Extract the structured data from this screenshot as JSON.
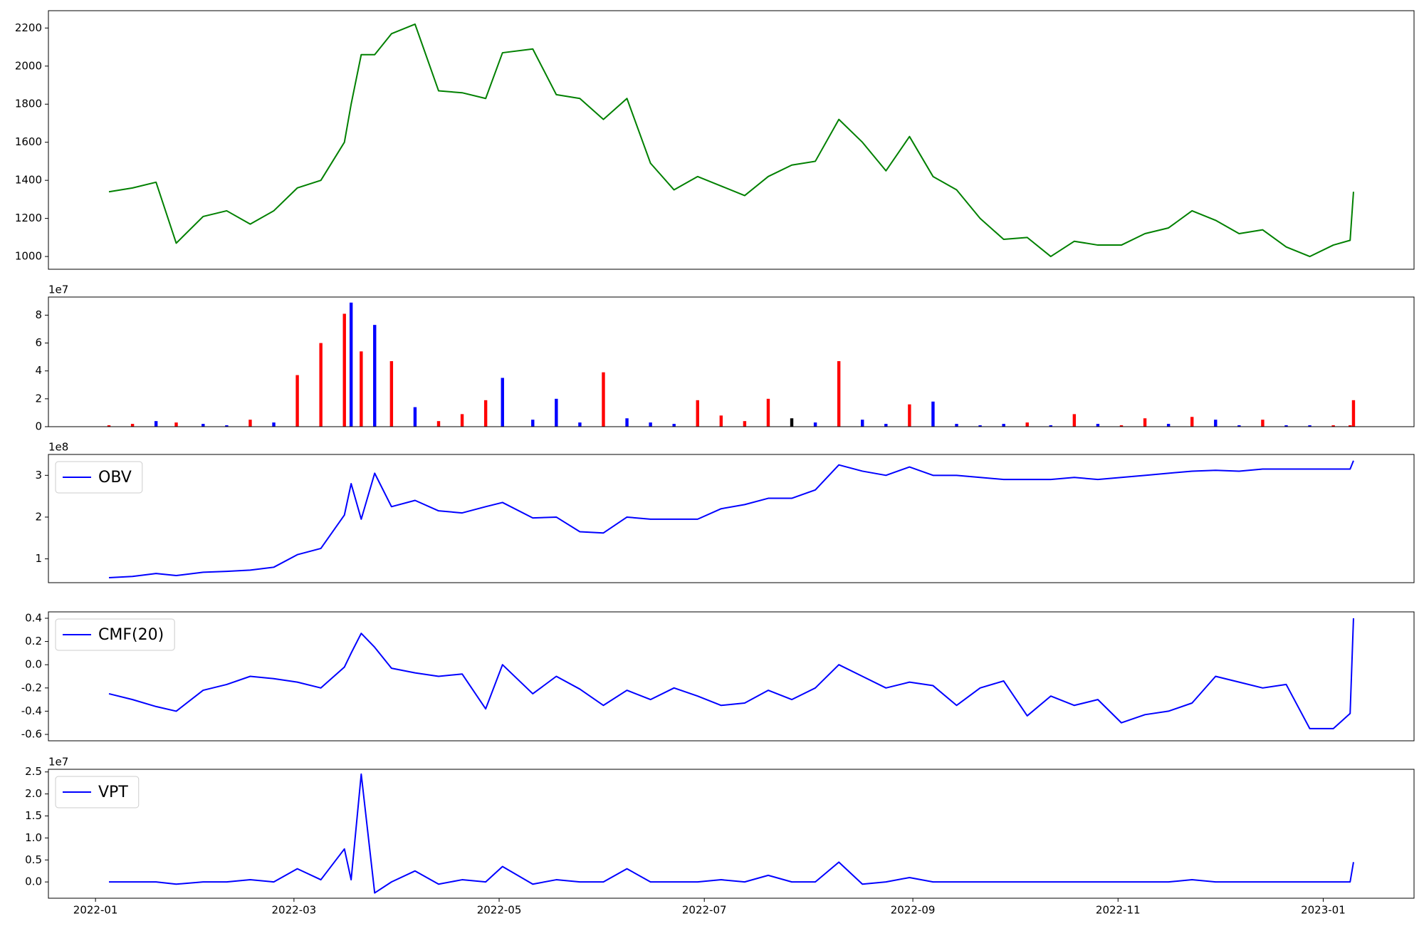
{
  "chart_data": [
    {
      "type": "line",
      "x": [
        "2022-01-05",
        "2022-01-12",
        "2022-01-19",
        "2022-01-25",
        "2022-02-02",
        "2022-02-09",
        "2022-02-16",
        "2022-02-23",
        "2022-03-02",
        "2022-03-09",
        "2022-03-16",
        "2022-03-18",
        "2022-03-21",
        "2022-03-25",
        "2022-03-30",
        "2022-04-06",
        "2022-04-13",
        "2022-04-20",
        "2022-04-27",
        "2022-05-02",
        "2022-05-11",
        "2022-05-18",
        "2022-05-25",
        "2022-06-01",
        "2022-06-08",
        "2022-06-15",
        "2022-06-22",
        "2022-06-29",
        "2022-07-06",
        "2022-07-13",
        "2022-07-20",
        "2022-07-27",
        "2022-08-03",
        "2022-08-10",
        "2022-08-17",
        "2022-08-24",
        "2022-08-31",
        "2022-09-07",
        "2022-09-14",
        "2022-09-21",
        "2022-09-28",
        "2022-10-05",
        "2022-10-12",
        "2022-10-19",
        "2022-10-26",
        "2022-11-02",
        "2022-11-09",
        "2022-11-16",
        "2022-11-23",
        "2022-11-30",
        "2022-12-07",
        "2022-12-14",
        "2022-12-21",
        "2022-12-28",
        "2023-01-04",
        "2023-01-09",
        "2023-01-10"
      ],
      "series": [
        {
          "color": "green",
          "values": [
            1340,
            1360,
            1390,
            1070,
            1210,
            1240,
            1170,
            1240,
            1360,
            1400,
            1600,
            1800,
            2060,
            2060,
            2170,
            2220,
            1870,
            1860,
            1830,
            2070,
            2090,
            1850,
            1830,
            1720,
            1830,
            1490,
            1350,
            1420,
            1370,
            1320,
            1420,
            1480,
            1500,
            1720,
            1600,
            1450,
            1630,
            1420,
            1350,
            1200,
            1090,
            1100,
            1000,
            1080,
            1060,
            1060,
            1120,
            1150,
            1240,
            1190,
            1120,
            1140,
            1050,
            1000,
            1060,
            1085,
            1340
          ]
        }
      ],
      "xlim": [
        "2021-12-18",
        "2023-01-28"
      ],
      "ylim": [
        933,
        2291
      ],
      "yticks": [
        1000,
        1200,
        1400,
        1600,
        1800,
        2000,
        2200
      ]
    },
    {
      "type": "bar",
      "offset_label": "1e7",
      "x": [
        "2022-01-05",
        "2022-01-12",
        "2022-01-19",
        "2022-01-25",
        "2022-02-02",
        "2022-02-09",
        "2022-02-16",
        "2022-02-23",
        "2022-03-02",
        "2022-03-09",
        "2022-03-16",
        "2022-03-18",
        "2022-03-21",
        "2022-03-25",
        "2022-03-30",
        "2022-04-06",
        "2022-04-13",
        "2022-04-20",
        "2022-04-27",
        "2022-05-02",
        "2022-05-11",
        "2022-05-18",
        "2022-05-25",
        "2022-06-01",
        "2022-06-08",
        "2022-06-15",
        "2022-06-22",
        "2022-06-29",
        "2022-07-06",
        "2022-07-13",
        "2022-07-20",
        "2022-07-27",
        "2022-08-03",
        "2022-08-10",
        "2022-08-17",
        "2022-08-24",
        "2022-08-31",
        "2022-09-07",
        "2022-09-14",
        "2022-09-21",
        "2022-09-28",
        "2022-10-05",
        "2022-10-12",
        "2022-10-19",
        "2022-10-26",
        "2022-11-02",
        "2022-11-09",
        "2022-11-16",
        "2022-11-23",
        "2022-11-30",
        "2022-12-07",
        "2022-12-14",
        "2022-12-21",
        "2022-12-28",
        "2023-01-04",
        "2023-01-09",
        "2023-01-10"
      ],
      "values": [
        0.1,
        0.2,
        0.4,
        0.3,
        0.2,
        0.1,
        0.5,
        0.3,
        3.7,
        6.0,
        8.1,
        8.9,
        5.4,
        7.3,
        4.7,
        1.4,
        0.4,
        0.9,
        1.9,
        3.5,
        0.5,
        2.0,
        0.3,
        3.9,
        0.6,
        0.3,
        0.2,
        1.9,
        0.8,
        0.4,
        2.0,
        0.6,
        0.3,
        4.7,
        0.5,
        0.2,
        1.6,
        1.8,
        0.2,
        0.1,
        0.2,
        0.3,
        0.1,
        0.9,
        0.2,
        0.1,
        0.6,
        0.2,
        0.7,
        0.5,
        0.1,
        0.5,
        0.1,
        0.1,
        0.1,
        0.1,
        1.9
      ],
      "colors": [
        "red",
        "red",
        "blue",
        "red",
        "blue",
        "blue",
        "red",
        "blue",
        "red",
        "red",
        "red",
        "blue",
        "red",
        "blue",
        "red",
        "blue",
        "red",
        "red",
        "red",
        "blue",
        "blue",
        "blue",
        "blue",
        "red",
        "blue",
        "blue",
        "blue",
        "red",
        "red",
        "red",
        "red",
        "black",
        "blue",
        "red",
        "blue",
        "blue",
        "red",
        "blue",
        "blue",
        "blue",
        "blue",
        "red",
        "blue",
        "red",
        "blue",
        "red",
        "red",
        "blue",
        "red",
        "blue",
        "blue",
        "red",
        "blue",
        "blue",
        "red",
        "red",
        "red"
      ],
      "xlim": [
        "2021-12-18",
        "2023-01-28"
      ],
      "ylim": [
        0,
        9.3
      ],
      "yticks": [
        0,
        2,
        4,
        6,
        8
      ]
    },
    {
      "type": "line",
      "offset_label": "1e8",
      "legend": "upper left",
      "x": [
        "2022-01-05",
        "2022-01-12",
        "2022-01-19",
        "2022-01-25",
        "2022-02-02",
        "2022-02-09",
        "2022-02-16",
        "2022-02-23",
        "2022-03-02",
        "2022-03-09",
        "2022-03-16",
        "2022-03-18",
        "2022-03-21",
        "2022-03-25",
        "2022-03-30",
        "2022-04-06",
        "2022-04-13",
        "2022-04-20",
        "2022-04-27",
        "2022-05-02",
        "2022-05-11",
        "2022-05-18",
        "2022-05-25",
        "2022-06-01",
        "2022-06-08",
        "2022-06-15",
        "2022-06-22",
        "2022-06-29",
        "2022-07-06",
        "2022-07-13",
        "2022-07-20",
        "2022-07-27",
        "2022-08-03",
        "2022-08-10",
        "2022-08-17",
        "2022-08-24",
        "2022-08-31",
        "2022-09-07",
        "2022-09-14",
        "2022-09-21",
        "2022-09-28",
        "2022-10-05",
        "2022-10-12",
        "2022-10-19",
        "2022-10-26",
        "2022-11-02",
        "2022-11-09",
        "2022-11-16",
        "2022-11-23",
        "2022-11-30",
        "2022-12-07",
        "2022-12-14",
        "2022-12-21",
        "2022-12-28",
        "2023-01-04",
        "2023-01-09",
        "2023-01-10"
      ],
      "series": [
        {
          "name": "OBV",
          "color": "blue",
          "values": [
            0.55,
            0.58,
            0.65,
            0.6,
            0.68,
            0.7,
            0.73,
            0.8,
            1.1,
            1.25,
            2.05,
            2.8,
            1.95,
            3.05,
            2.25,
            2.4,
            2.15,
            2.1,
            2.25,
            2.35,
            1.98,
            2.0,
            1.65,
            1.62,
            2.0,
            1.95,
            1.95,
            1.95,
            2.2,
            2.3,
            2.45,
            2.45,
            2.65,
            3.25,
            3.1,
            3.0,
            3.2,
            3.0,
            3.0,
            2.95,
            2.9,
            2.9,
            2.9,
            2.95,
            2.9,
            2.95,
            3.0,
            3.05,
            3.1,
            3.12,
            3.1,
            3.15,
            3.15,
            3.15,
            3.15,
            3.15,
            3.35
          ]
        }
      ],
      "xlim": [
        "2021-12-18",
        "2023-01-28"
      ],
      "ylim": [
        0.43,
        3.5
      ],
      "yticks": [
        1,
        2,
        3
      ]
    },
    {
      "type": "line",
      "legend": "upper left",
      "x": [
        "2022-01-05",
        "2022-01-12",
        "2022-01-19",
        "2022-01-25",
        "2022-02-02",
        "2022-02-09",
        "2022-02-16",
        "2022-02-23",
        "2022-03-02",
        "2022-03-09",
        "2022-03-16",
        "2022-03-18",
        "2022-03-21",
        "2022-03-25",
        "2022-03-30",
        "2022-04-06",
        "2022-04-13",
        "2022-04-20",
        "2022-04-27",
        "2022-05-02",
        "2022-05-11",
        "2022-05-18",
        "2022-05-25",
        "2022-06-01",
        "2022-06-08",
        "2022-06-15",
        "2022-06-22",
        "2022-06-29",
        "2022-07-06",
        "2022-07-13",
        "2022-07-20",
        "2022-07-27",
        "2022-08-03",
        "2022-08-10",
        "2022-08-17",
        "2022-08-24",
        "2022-08-31",
        "2022-09-07",
        "2022-09-14",
        "2022-09-21",
        "2022-09-28",
        "2022-10-05",
        "2022-10-12",
        "2022-10-19",
        "2022-10-26",
        "2022-11-02",
        "2022-11-09",
        "2022-11-16",
        "2022-11-23",
        "2022-11-30",
        "2022-12-07",
        "2022-12-14",
        "2022-12-21",
        "2022-12-28",
        "2023-01-04",
        "2023-01-09",
        "2023-01-10"
      ],
      "series": [
        {
          "name": "CMF(20)",
          "color": "blue",
          "values": [
            -0.25,
            -0.3,
            -0.36,
            -0.4,
            -0.22,
            -0.17,
            -0.1,
            -0.12,
            -0.15,
            -0.2,
            -0.02,
            0.1,
            0.27,
            0.15,
            -0.03,
            -0.07,
            -0.1,
            -0.08,
            -0.38,
            0.0,
            -0.25,
            -0.1,
            -0.21,
            -0.35,
            -0.22,
            -0.3,
            -0.2,
            -0.27,
            -0.35,
            -0.33,
            -0.22,
            -0.3,
            -0.2,
            0.0,
            -0.1,
            -0.2,
            -0.15,
            -0.18,
            -0.35,
            -0.2,
            -0.14,
            -0.44,
            -0.27,
            -0.35,
            -0.3,
            -0.5,
            -0.43,
            -0.4,
            -0.33,
            -0.1,
            -0.15,
            -0.2,
            -0.17,
            -0.55,
            -0.55,
            -0.42,
            0.4
          ]
        }
      ],
      "xlim": [
        "2021-12-18",
        "2023-01-28"
      ],
      "ylim": [
        -0.655,
        0.455
      ],
      "yticks": [
        -0.6,
        -0.4,
        -0.2,
        {
          "value": 0,
          "label": "0.0"
        },
        0.2,
        0.4
      ]
    },
    {
      "type": "line",
      "offset_label": "1e7",
      "legend": "upper left",
      "x": [
        "2022-01-05",
        "2022-01-12",
        "2022-01-19",
        "2022-01-25",
        "2022-02-02",
        "2022-02-09",
        "2022-02-16",
        "2022-02-23",
        "2022-03-02",
        "2022-03-09",
        "2022-03-16",
        "2022-03-18",
        "2022-03-21",
        "2022-03-25",
        "2022-03-30",
        "2022-04-06",
        "2022-04-13",
        "2022-04-20",
        "2022-04-27",
        "2022-05-02",
        "2022-05-11",
        "2022-05-18",
        "2022-05-25",
        "2022-06-01",
        "2022-06-08",
        "2022-06-15",
        "2022-06-22",
        "2022-06-29",
        "2022-07-06",
        "2022-07-13",
        "2022-07-20",
        "2022-07-27",
        "2022-08-03",
        "2022-08-10",
        "2022-08-17",
        "2022-08-24",
        "2022-08-31",
        "2022-09-07",
        "2022-09-14",
        "2022-09-21",
        "2022-09-28",
        "2022-10-05",
        "2022-10-12",
        "2022-10-19",
        "2022-10-26",
        "2022-11-02",
        "2022-11-09",
        "2022-11-16",
        "2022-11-23",
        "2022-11-30",
        "2022-12-07",
        "2022-12-14",
        "2022-12-21",
        "2022-12-28",
        "2023-01-04",
        "2023-01-09",
        "2023-01-10"
      ],
      "series": [
        {
          "name": "VPT",
          "color": "blue",
          "values": [
            0,
            0,
            0,
            -0.05,
            0,
            0,
            0.05,
            0,
            0.3,
            0.05,
            0.75,
            0.05,
            2.45,
            -0.25,
            0,
            0.25,
            -0.05,
            0.05,
            0,
            0.35,
            -0.05,
            0.05,
            0,
            0,
            0.3,
            0,
            0,
            0,
            0.05,
            0,
            0.15,
            0,
            0,
            0.45,
            -0.05,
            0,
            0.1,
            0,
            0,
            0,
            0,
            0,
            0,
            0,
            0,
            0,
            0,
            0,
            0.05,
            0,
            0,
            0,
            0,
            0,
            0,
            0,
            0.45
          ]
        }
      ],
      "xlim": [
        "2021-12-18",
        "2023-01-28"
      ],
      "ylim": [
        -0.37,
        2.56
      ],
      "yticks": [
        {
          "value": 0,
          "label": "0.0"
        },
        0.5,
        {
          "value": 1,
          "label": "1.0"
        },
        1.5,
        {
          "value": 2,
          "label": "2.0"
        },
        2.5
      ],
      "xticks": [
        {
          "value": "2022-01-01",
          "label": "2022-01"
        },
        {
          "value": "2022-03-01",
          "label": "2022-03"
        },
        {
          "value": "2022-05-01",
          "label": "2022-05"
        },
        {
          "value": "2022-07-01",
          "label": "2022-07"
        },
        {
          "value": "2022-09-01",
          "label": "2022-09"
        },
        {
          "value": "2022-11-01",
          "label": "2022-11"
        },
        {
          "value": "2023-01-01",
          "label": "2023-01"
        }
      ]
    }
  ]
}
